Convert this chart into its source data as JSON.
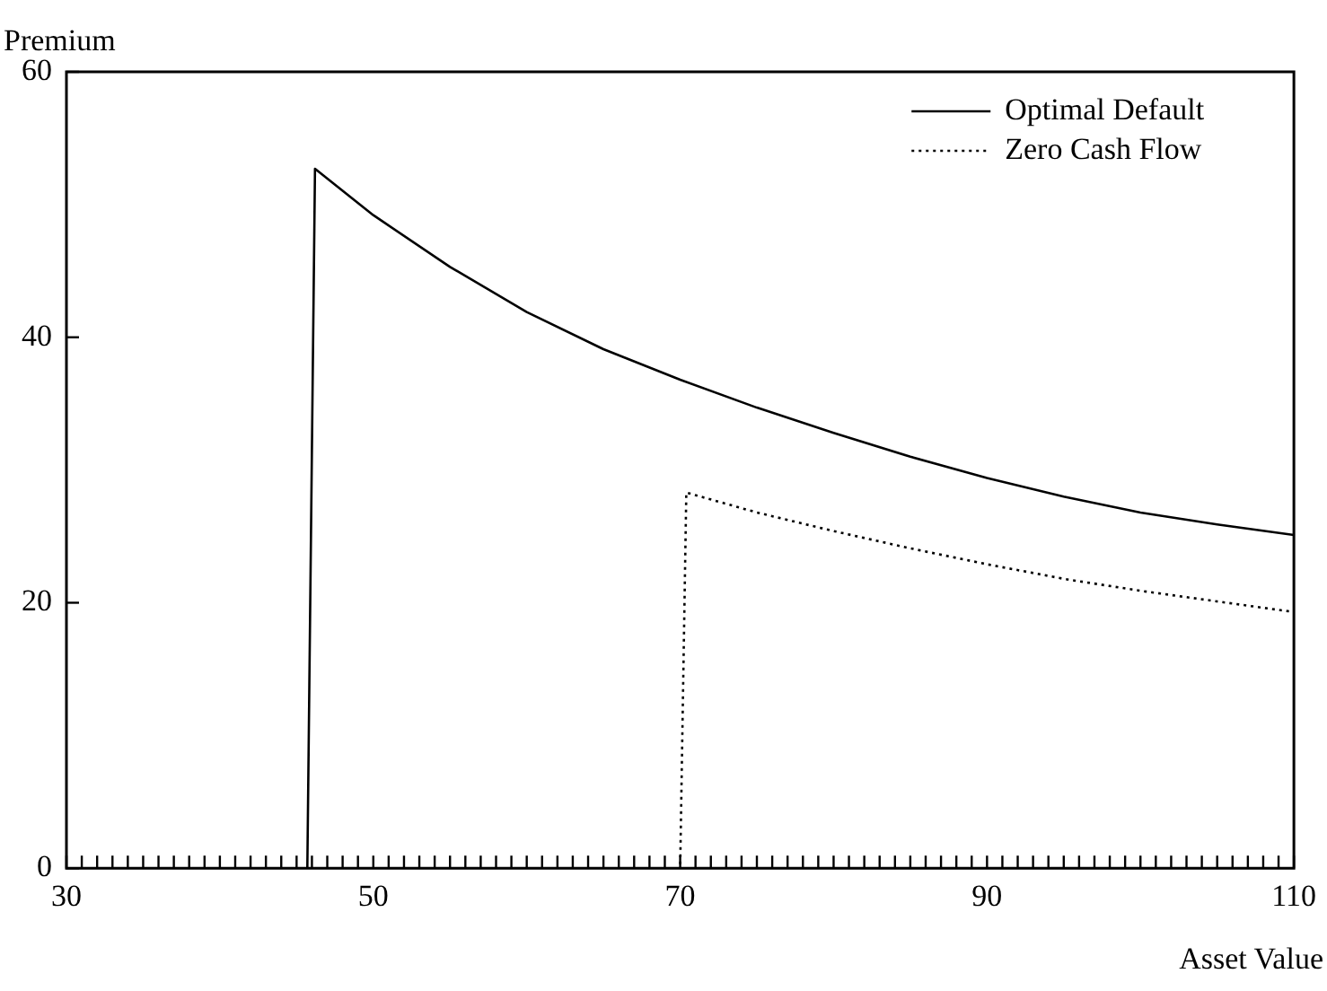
{
  "chart_data": {
    "type": "line",
    "xlabel": "Asset Value",
    "ylabel": "Premium",
    "xlim": [
      30,
      110
    ],
    "ylim": [
      0,
      60
    ],
    "xticks": [
      30,
      {
        "value": 31,
        "label": null
      },
      {
        "value": 32,
        "label": null
      },
      {
        "value": 33,
        "label": null
      },
      {
        "value": 34,
        "label": null
      },
      {
        "value": 35,
        "label": null
      },
      {
        "value": 36,
        "label": null
      },
      {
        "value": 37,
        "label": null
      },
      {
        "value": 38,
        "label": null
      },
      {
        "value": 39,
        "label": null
      },
      {
        "value": 40,
        "label": null
      },
      {
        "value": 41,
        "label": null
      },
      {
        "value": 42,
        "label": null
      },
      {
        "value": 43,
        "label": null
      },
      {
        "value": 44,
        "label": null
      },
      {
        "value": 45,
        "label": null
      },
      {
        "value": 46,
        "label": null
      },
      {
        "value": 47,
        "label": null
      },
      {
        "value": 48,
        "label": null
      },
      {
        "value": 49,
        "label": null
      },
      50,
      {
        "value": 51,
        "label": null
      },
      {
        "value": 52,
        "label": null
      },
      {
        "value": 53,
        "label": null
      },
      {
        "value": 54,
        "label": null
      },
      {
        "value": 55,
        "label": null
      },
      {
        "value": 56,
        "label": null
      },
      {
        "value": 57,
        "label": null
      },
      {
        "value": 58,
        "label": null
      },
      {
        "value": 59,
        "label": null
      },
      {
        "value": 60,
        "label": null
      },
      {
        "value": 61,
        "label": null
      },
      {
        "value": 62,
        "label": null
      },
      {
        "value": 63,
        "label": null
      },
      {
        "value": 64,
        "label": null
      },
      {
        "value": 65,
        "label": null
      },
      {
        "value": 66,
        "label": null
      },
      {
        "value": 67,
        "label": null
      },
      {
        "value": 68,
        "label": null
      },
      {
        "value": 69,
        "label": null
      },
      70,
      {
        "value": 71,
        "label": null
      },
      {
        "value": 72,
        "label": null
      },
      {
        "value": 73,
        "label": null
      },
      {
        "value": 74,
        "label": null
      },
      {
        "value": 75,
        "label": null
      },
      {
        "value": 76,
        "label": null
      },
      {
        "value": 77,
        "label": null
      },
      {
        "value": 78,
        "label": null
      },
      {
        "value": 79,
        "label": null
      },
      {
        "value": 80,
        "label": null
      },
      {
        "value": 81,
        "label": null
      },
      {
        "value": 82,
        "label": null
      },
      {
        "value": 83,
        "label": null
      },
      {
        "value": 84,
        "label": null
      },
      {
        "value": 85,
        "label": null
      },
      {
        "value": 86,
        "label": null
      },
      {
        "value": 87,
        "label": null
      },
      {
        "value": 88,
        "label": null
      },
      {
        "value": 89,
        "label": null
      },
      90,
      {
        "value": 91,
        "label": null
      },
      {
        "value": 92,
        "label": null
      },
      {
        "value": 93,
        "label": null
      },
      {
        "value": 94,
        "label": null
      },
      {
        "value": 95,
        "label": null
      },
      {
        "value": 96,
        "label": null
      },
      {
        "value": 97,
        "label": null
      },
      {
        "value": 98,
        "label": null
      },
      {
        "value": 99,
        "label": null
      },
      {
        "value": 100,
        "label": null
      },
      {
        "value": 101,
        "label": null
      },
      {
        "value": 102,
        "label": null
      },
      {
        "value": 103,
        "label": null
      },
      {
        "value": 104,
        "label": null
      },
      {
        "value": 105,
        "label": null
      },
      {
        "value": 106,
        "label": null
      },
      {
        "value": 107,
        "label": null
      },
      {
        "value": 108,
        "label": null
      },
      {
        "value": 109,
        "label": null
      },
      110
    ],
    "yticks": [
      0,
      20,
      40,
      60
    ],
    "grid": false,
    "legend": "top right",
    "marker": "none",
    "series": [
      {
        "name": "Optimal Default",
        "color": "#000000",
        "line_style": "solid",
        "x": [
          30,
          45.7,
          46.2,
          50,
          55,
          60,
          65,
          70,
          75,
          80,
          85,
          90,
          95,
          100,
          105,
          110
        ],
        "values": [
          0,
          0,
          52.7,
          49.2,
          45.3,
          41.9,
          39.1,
          36.8,
          34.7,
          32.8,
          31,
          29.4,
          28,
          26.8,
          25.9,
          25.1
        ]
      },
      {
        "name": "Zero Cash Flow",
        "color": "#000000",
        "line_style": "dotted",
        "x": [
          30,
          70,
          70.4,
          75,
          80,
          85,
          90,
          95,
          100,
          105,
          110
        ],
        "values": [
          0,
          0,
          28.3,
          26.8,
          25.4,
          24.1,
          22.9,
          21.8,
          20.9,
          20.1,
          19.3
        ]
      }
    ]
  }
}
